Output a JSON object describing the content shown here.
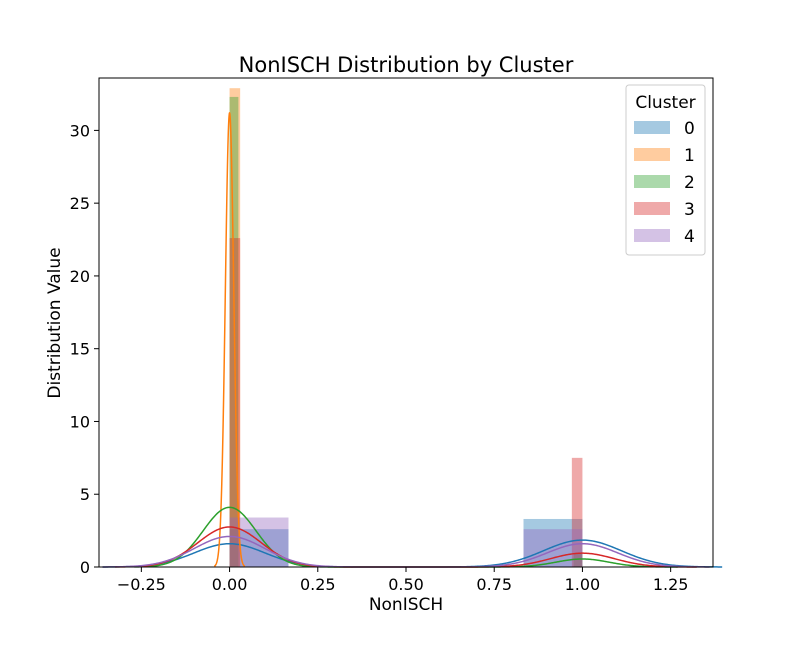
{
  "chart_data": {
    "type": "histogram",
    "title": "NonISCH Distribution by Cluster",
    "xlabel": "NonISCH",
    "ylabel": "Distribution Value",
    "xlim": [
      -0.37,
      1.37
    ],
    "ylim": [
      0,
      33.6
    ],
    "xticks": [
      -0.25,
      0.0,
      0.25,
      0.5,
      0.75,
      1.0,
      1.25
    ],
    "xtick_labels": [
      "−0.25",
      "0.00",
      "0.25",
      "0.50",
      "0.75",
      "1.00",
      "1.25"
    ],
    "yticks": [
      0,
      5,
      10,
      15,
      20,
      25,
      30
    ],
    "ytick_labels": [
      "0",
      "5",
      "10",
      "15",
      "20",
      "25",
      "30"
    ],
    "grid": false,
    "legend": {
      "title": "Cluster",
      "placement": "top-right"
    },
    "series": [
      {
        "name": "0",
        "color": "#1f77b4",
        "bars": [
          {
            "x0": 0.0,
            "x1": 0.167,
            "height": 2.6
          },
          {
            "x0": 0.833,
            "x1": 1.0,
            "height": 3.3
          }
        ],
        "kde": {
          "peaks": [
            {
              "mu": 0.0,
              "sigma": 0.1,
              "height": 1.6
            },
            {
              "mu": 1.0,
              "sigma": 0.11,
              "height": 1.85
            }
          ]
        }
      },
      {
        "name": "1",
        "color": "#ff7f0e",
        "bars": [
          {
            "x0": 0.0,
            "x1": 0.03,
            "height": 32.9
          }
        ],
        "kde": {
          "peaks": [
            {
              "mu": 0.0,
              "sigma": 0.012,
              "height": 31.2
            }
          ]
        }
      },
      {
        "name": "2",
        "color": "#2ca02c",
        "bars": [
          {
            "x0": 0.0,
            "x1": 0.025,
            "height": 32.3
          },
          {
            "x0": 0.975,
            "x1": 1.0,
            "height": 0.9
          }
        ],
        "kde": {
          "peaks": [
            {
              "mu": 0.0,
              "sigma": 0.075,
              "height": 4.1
            },
            {
              "mu": 1.0,
              "sigma": 0.075,
              "height": 0.55
            }
          ]
        }
      },
      {
        "name": "3",
        "color": "#d62728",
        "bars": [
          {
            "x0": 0.0,
            "x1": 0.03,
            "height": 22.6
          },
          {
            "x0": 0.97,
            "x1": 1.0,
            "height": 7.5
          }
        ],
        "kde": {
          "peaks": [
            {
              "mu": 0.0,
              "sigma": 0.09,
              "height": 2.75
            },
            {
              "mu": 1.0,
              "sigma": 0.09,
              "height": 0.95
            }
          ]
        }
      },
      {
        "name": "4",
        "color": "#9467bd",
        "bars": [
          {
            "x0": 0.0,
            "x1": 0.167,
            "height": 3.4
          },
          {
            "x0": 0.833,
            "x1": 1.0,
            "height": 2.6
          }
        ],
        "kde": {
          "peaks": [
            {
              "mu": 0.0,
              "sigma": 0.1,
              "height": 2.1
            },
            {
              "mu": 1.0,
              "sigma": 0.1,
              "height": 1.6
            }
          ]
        }
      }
    ]
  }
}
